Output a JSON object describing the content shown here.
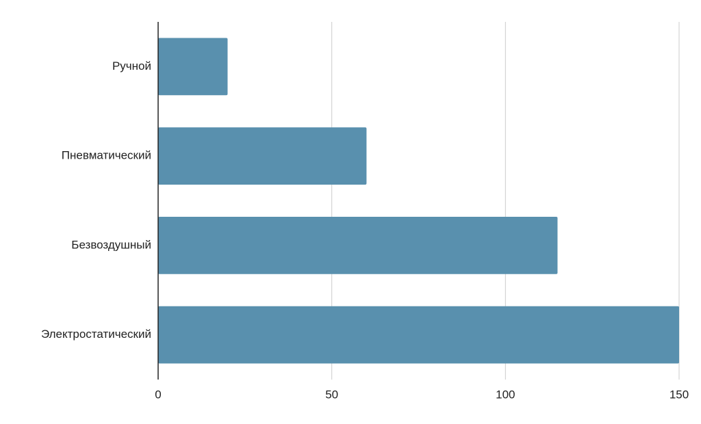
{
  "chart_data": {
    "type": "bar",
    "orientation": "horizontal",
    "categories": [
      "Ручной",
      "Пневматический",
      "Безвоздушный",
      "Электростатический"
    ],
    "values": [
      20,
      60,
      115,
      150
    ],
    "color": "#5990ae",
    "xlim": [
      0,
      150
    ],
    "xticks": [
      0,
      50,
      100,
      150
    ],
    "grid": true
  }
}
